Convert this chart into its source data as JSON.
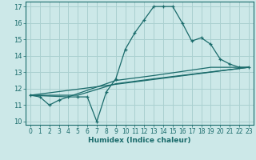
{
  "xlabel": "Humidex (Indice chaleur)",
  "bg_color": "#cce8e8",
  "grid_color": "#aad0d0",
  "line_color": "#1a6b6b",
  "xlim": [
    -0.5,
    23.5
  ],
  "ylim": [
    9.8,
    17.3
  ],
  "xticks": [
    0,
    1,
    2,
    3,
    4,
    5,
    6,
    7,
    8,
    9,
    10,
    11,
    12,
    13,
    14,
    15,
    16,
    17,
    18,
    19,
    20,
    21,
    22,
    23
  ],
  "yticks": [
    10,
    11,
    12,
    13,
    14,
    15,
    16,
    17
  ],
  "line1_x": [
    0,
    1,
    2,
    3,
    4,
    5,
    6,
    7,
    8,
    9,
    10,
    11,
    12,
    13,
    14,
    15,
    16,
    17,
    18,
    19,
    20,
    21,
    22,
    23
  ],
  "line1_y": [
    11.6,
    11.5,
    11.0,
    11.3,
    11.5,
    11.5,
    11.5,
    10.0,
    11.8,
    12.6,
    14.4,
    15.4,
    16.2,
    17.0,
    17.0,
    17.0,
    16.0,
    14.9,
    15.1,
    14.7,
    13.8,
    13.5,
    13.3,
    13.3
  ],
  "line2_x": [
    0,
    4,
    9,
    13,
    19,
    23
  ],
  "line2_y": [
    11.6,
    11.5,
    12.5,
    12.8,
    13.3,
    13.3
  ],
  "line3_x": [
    0,
    23
  ],
  "line3_y": [
    11.6,
    13.3
  ],
  "line4_x": [
    0,
    5,
    9,
    13,
    23
  ],
  "line4_y": [
    11.6,
    11.6,
    12.3,
    12.6,
    13.3
  ]
}
